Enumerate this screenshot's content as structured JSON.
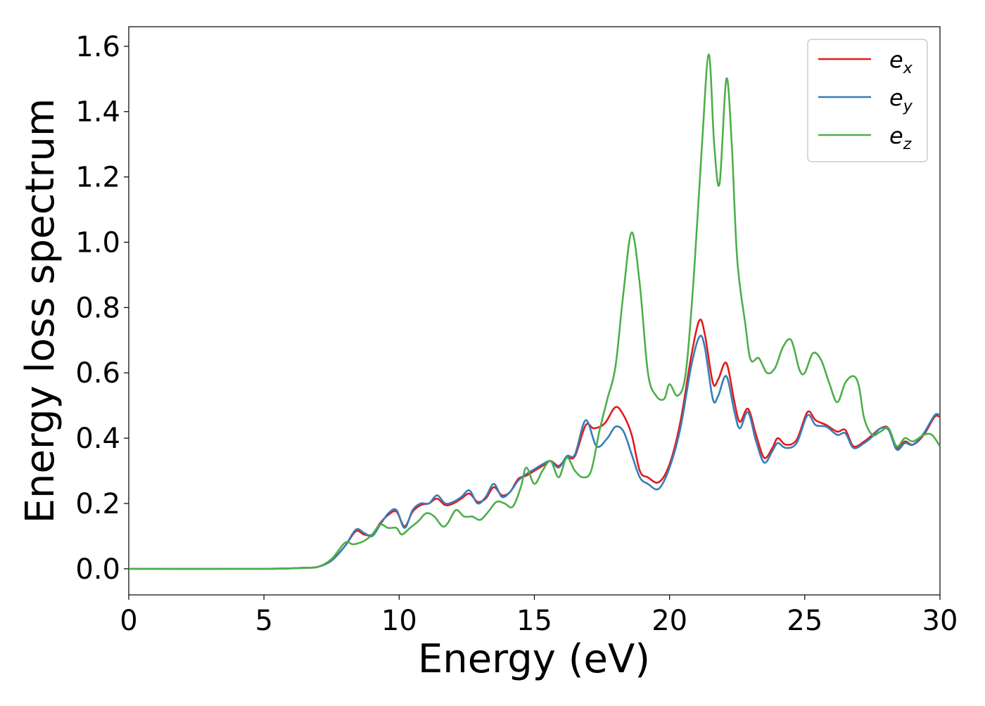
{
  "chart_data": {
    "type": "line",
    "title": "",
    "xlabel": "Energy (eV)",
    "ylabel": "Energy loss spectrum",
    "xlim": [
      0,
      30
    ],
    "ylim": [
      -0.08,
      1.66
    ],
    "xticks": [
      0,
      5,
      10,
      15,
      20,
      25,
      30
    ],
    "yticks": [
      0.0,
      0.2,
      0.4,
      0.6,
      0.8,
      1.0,
      1.2,
      1.4,
      1.6
    ],
    "xtick_labels": [
      "0",
      "5",
      "10",
      "15",
      "20",
      "25",
      "30"
    ],
    "ytick_labels": [
      "0.0",
      "0.2",
      "0.4",
      "0.6",
      "0.8",
      "1.0",
      "1.2",
      "1.4",
      "1.6"
    ],
    "grid": false,
    "legend_position": "top-right",
    "series": [
      {
        "name": "e",
        "subscript": "x",
        "color": "#e41a1c",
        "points": [
          [
            0,
            0.0
          ],
          [
            5,
            0.0
          ],
          [
            6.5,
            0.003
          ],
          [
            7.0,
            0.006
          ],
          [
            7.5,
            0.025
          ],
          [
            8.0,
            0.07
          ],
          [
            8.4,
            0.115
          ],
          [
            8.7,
            0.105
          ],
          [
            9.0,
            0.105
          ],
          [
            9.3,
            0.14
          ],
          [
            9.6,
            0.165
          ],
          [
            9.9,
            0.175
          ],
          [
            10.2,
            0.13
          ],
          [
            10.5,
            0.175
          ],
          [
            10.8,
            0.195
          ],
          [
            11.1,
            0.2
          ],
          [
            11.4,
            0.215
          ],
          [
            11.7,
            0.195
          ],
          [
            12.0,
            0.2
          ],
          [
            12.3,
            0.215
          ],
          [
            12.6,
            0.23
          ],
          [
            12.9,
            0.205
          ],
          [
            13.2,
            0.215
          ],
          [
            13.5,
            0.25
          ],
          [
            13.8,
            0.225
          ],
          [
            14.1,
            0.235
          ],
          [
            14.4,
            0.275
          ],
          [
            14.7,
            0.285
          ],
          [
            15.0,
            0.3
          ],
          [
            15.3,
            0.315
          ],
          [
            15.6,
            0.33
          ],
          [
            15.9,
            0.315
          ],
          [
            16.2,
            0.34
          ],
          [
            16.5,
            0.345
          ],
          [
            16.9,
            0.44
          ],
          [
            17.2,
            0.43
          ],
          [
            17.6,
            0.445
          ],
          [
            18.0,
            0.495
          ],
          [
            18.3,
            0.47
          ],
          [
            18.6,
            0.41
          ],
          [
            18.9,
            0.3
          ],
          [
            19.2,
            0.28
          ],
          [
            19.6,
            0.265
          ],
          [
            20.0,
            0.32
          ],
          [
            20.4,
            0.45
          ],
          [
            20.8,
            0.65
          ],
          [
            21.1,
            0.76
          ],
          [
            21.3,
            0.72
          ],
          [
            21.6,
            0.57
          ],
          [
            21.8,
            0.58
          ],
          [
            22.1,
            0.63
          ],
          [
            22.4,
            0.51
          ],
          [
            22.6,
            0.45
          ],
          [
            22.9,
            0.49
          ],
          [
            23.2,
            0.41
          ],
          [
            23.5,
            0.34
          ],
          [
            23.8,
            0.37
          ],
          [
            24.0,
            0.4
          ],
          [
            24.3,
            0.38
          ],
          [
            24.7,
            0.395
          ],
          [
            25.1,
            0.48
          ],
          [
            25.4,
            0.455
          ],
          [
            25.8,
            0.44
          ],
          [
            26.2,
            0.42
          ],
          [
            26.5,
            0.425
          ],
          [
            26.8,
            0.375
          ],
          [
            27.2,
            0.39
          ],
          [
            27.5,
            0.41
          ],
          [
            27.8,
            0.43
          ],
          [
            28.1,
            0.43
          ],
          [
            28.4,
            0.37
          ],
          [
            28.7,
            0.39
          ],
          [
            29.0,
            0.38
          ],
          [
            29.4,
            0.41
          ],
          [
            29.8,
            0.465
          ],
          [
            30.0,
            0.465
          ]
        ]
      },
      {
        "name": "e",
        "subscript": "y",
        "color": "#377eb8",
        "points": [
          [
            0,
            0.0
          ],
          [
            5,
            0.0
          ],
          [
            6.5,
            0.003
          ],
          [
            7.0,
            0.006
          ],
          [
            7.5,
            0.025
          ],
          [
            8.0,
            0.07
          ],
          [
            8.4,
            0.12
          ],
          [
            8.7,
            0.11
          ],
          [
            9.0,
            0.1
          ],
          [
            9.3,
            0.135
          ],
          [
            9.6,
            0.17
          ],
          [
            9.9,
            0.18
          ],
          [
            10.2,
            0.125
          ],
          [
            10.5,
            0.18
          ],
          [
            10.8,
            0.2
          ],
          [
            11.1,
            0.2
          ],
          [
            11.4,
            0.225
          ],
          [
            11.7,
            0.2
          ],
          [
            12.0,
            0.205
          ],
          [
            12.3,
            0.22
          ],
          [
            12.6,
            0.24
          ],
          [
            12.9,
            0.2
          ],
          [
            13.2,
            0.22
          ],
          [
            13.5,
            0.26
          ],
          [
            13.8,
            0.22
          ],
          [
            14.1,
            0.235
          ],
          [
            14.4,
            0.27
          ],
          [
            14.7,
            0.29
          ],
          [
            15.0,
            0.305
          ],
          [
            15.3,
            0.32
          ],
          [
            15.6,
            0.33
          ],
          [
            15.9,
            0.31
          ],
          [
            16.2,
            0.345
          ],
          [
            16.5,
            0.35
          ],
          [
            16.9,
            0.455
          ],
          [
            17.3,
            0.375
          ],
          [
            17.7,
            0.4
          ],
          [
            18.0,
            0.435
          ],
          [
            18.3,
            0.42
          ],
          [
            18.6,
            0.35
          ],
          [
            18.9,
            0.28
          ],
          [
            19.2,
            0.26
          ],
          [
            19.6,
            0.245
          ],
          [
            20.0,
            0.31
          ],
          [
            20.4,
            0.43
          ],
          [
            20.8,
            0.62
          ],
          [
            21.1,
            0.71
          ],
          [
            21.3,
            0.68
          ],
          [
            21.6,
            0.52
          ],
          [
            21.8,
            0.53
          ],
          [
            22.1,
            0.59
          ],
          [
            22.4,
            0.48
          ],
          [
            22.6,
            0.43
          ],
          [
            22.9,
            0.48
          ],
          [
            23.2,
            0.39
          ],
          [
            23.5,
            0.325
          ],
          [
            23.8,
            0.36
          ],
          [
            24.0,
            0.385
          ],
          [
            24.3,
            0.37
          ],
          [
            24.7,
            0.385
          ],
          [
            25.1,
            0.47
          ],
          [
            25.4,
            0.44
          ],
          [
            25.8,
            0.435
          ],
          [
            26.2,
            0.41
          ],
          [
            26.5,
            0.415
          ],
          [
            26.8,
            0.37
          ],
          [
            27.2,
            0.385
          ],
          [
            27.5,
            0.405
          ],
          [
            27.8,
            0.43
          ],
          [
            28.1,
            0.425
          ],
          [
            28.4,
            0.365
          ],
          [
            28.7,
            0.385
          ],
          [
            29.0,
            0.38
          ],
          [
            29.4,
            0.415
          ],
          [
            29.8,
            0.47
          ],
          [
            30.0,
            0.47
          ]
        ]
      },
      {
        "name": "e",
        "subscript": "z",
        "color": "#4daf4a",
        "points": [
          [
            0,
            0.0
          ],
          [
            5,
            0.0
          ],
          [
            6.5,
            0.003
          ],
          [
            7.0,
            0.006
          ],
          [
            7.5,
            0.03
          ],
          [
            8.0,
            0.08
          ],
          [
            8.3,
            0.075
          ],
          [
            8.7,
            0.085
          ],
          [
            9.0,
            0.105
          ],
          [
            9.3,
            0.135
          ],
          [
            9.6,
            0.125
          ],
          [
            9.9,
            0.125
          ],
          [
            10.1,
            0.105
          ],
          [
            10.4,
            0.125
          ],
          [
            10.7,
            0.145
          ],
          [
            11.0,
            0.17
          ],
          [
            11.3,
            0.16
          ],
          [
            11.6,
            0.13
          ],
          [
            11.8,
            0.14
          ],
          [
            12.1,
            0.18
          ],
          [
            12.4,
            0.16
          ],
          [
            12.7,
            0.16
          ],
          [
            13.0,
            0.15
          ],
          [
            13.3,
            0.175
          ],
          [
            13.6,
            0.205
          ],
          [
            13.9,
            0.2
          ],
          [
            14.2,
            0.19
          ],
          [
            14.5,
            0.25
          ],
          [
            14.7,
            0.31
          ],
          [
            15.0,
            0.26
          ],
          [
            15.3,
            0.3
          ],
          [
            15.6,
            0.33
          ],
          [
            15.9,
            0.28
          ],
          [
            16.2,
            0.34
          ],
          [
            16.5,
            0.3
          ],
          [
            16.8,
            0.28
          ],
          [
            17.1,
            0.3
          ],
          [
            17.4,
            0.42
          ],
          [
            17.7,
            0.52
          ],
          [
            18.0,
            0.62
          ],
          [
            18.3,
            0.85
          ],
          [
            18.6,
            1.03
          ],
          [
            18.9,
            0.87
          ],
          [
            19.2,
            0.6
          ],
          [
            19.5,
            0.53
          ],
          [
            19.8,
            0.52
          ],
          [
            20.0,
            0.565
          ],
          [
            20.3,
            0.53
          ],
          [
            20.6,
            0.6
          ],
          [
            20.9,
            0.9
          ],
          [
            21.2,
            1.3
          ],
          [
            21.45,
            1.575
          ],
          [
            21.65,
            1.3
          ],
          [
            21.85,
            1.18
          ],
          [
            22.1,
            1.5
          ],
          [
            22.3,
            1.3
          ],
          [
            22.5,
            0.95
          ],
          [
            22.8,
            0.75
          ],
          [
            23.0,
            0.64
          ],
          [
            23.3,
            0.645
          ],
          [
            23.6,
            0.6
          ],
          [
            23.9,
            0.615
          ],
          [
            24.2,
            0.68
          ],
          [
            24.5,
            0.7
          ],
          [
            24.8,
            0.61
          ],
          [
            25.0,
            0.6
          ],
          [
            25.3,
            0.66
          ],
          [
            25.6,
            0.64
          ],
          [
            25.9,
            0.57
          ],
          [
            26.2,
            0.51
          ],
          [
            26.5,
            0.57
          ],
          [
            26.8,
            0.59
          ],
          [
            27.0,
            0.56
          ],
          [
            27.2,
            0.46
          ],
          [
            27.5,
            0.41
          ],
          [
            27.8,
            0.42
          ],
          [
            28.1,
            0.43
          ],
          [
            28.4,
            0.375
          ],
          [
            28.7,
            0.4
          ],
          [
            29.0,
            0.39
          ],
          [
            29.4,
            0.41
          ],
          [
            29.7,
            0.41
          ],
          [
            30.0,
            0.375
          ]
        ]
      }
    ]
  }
}
